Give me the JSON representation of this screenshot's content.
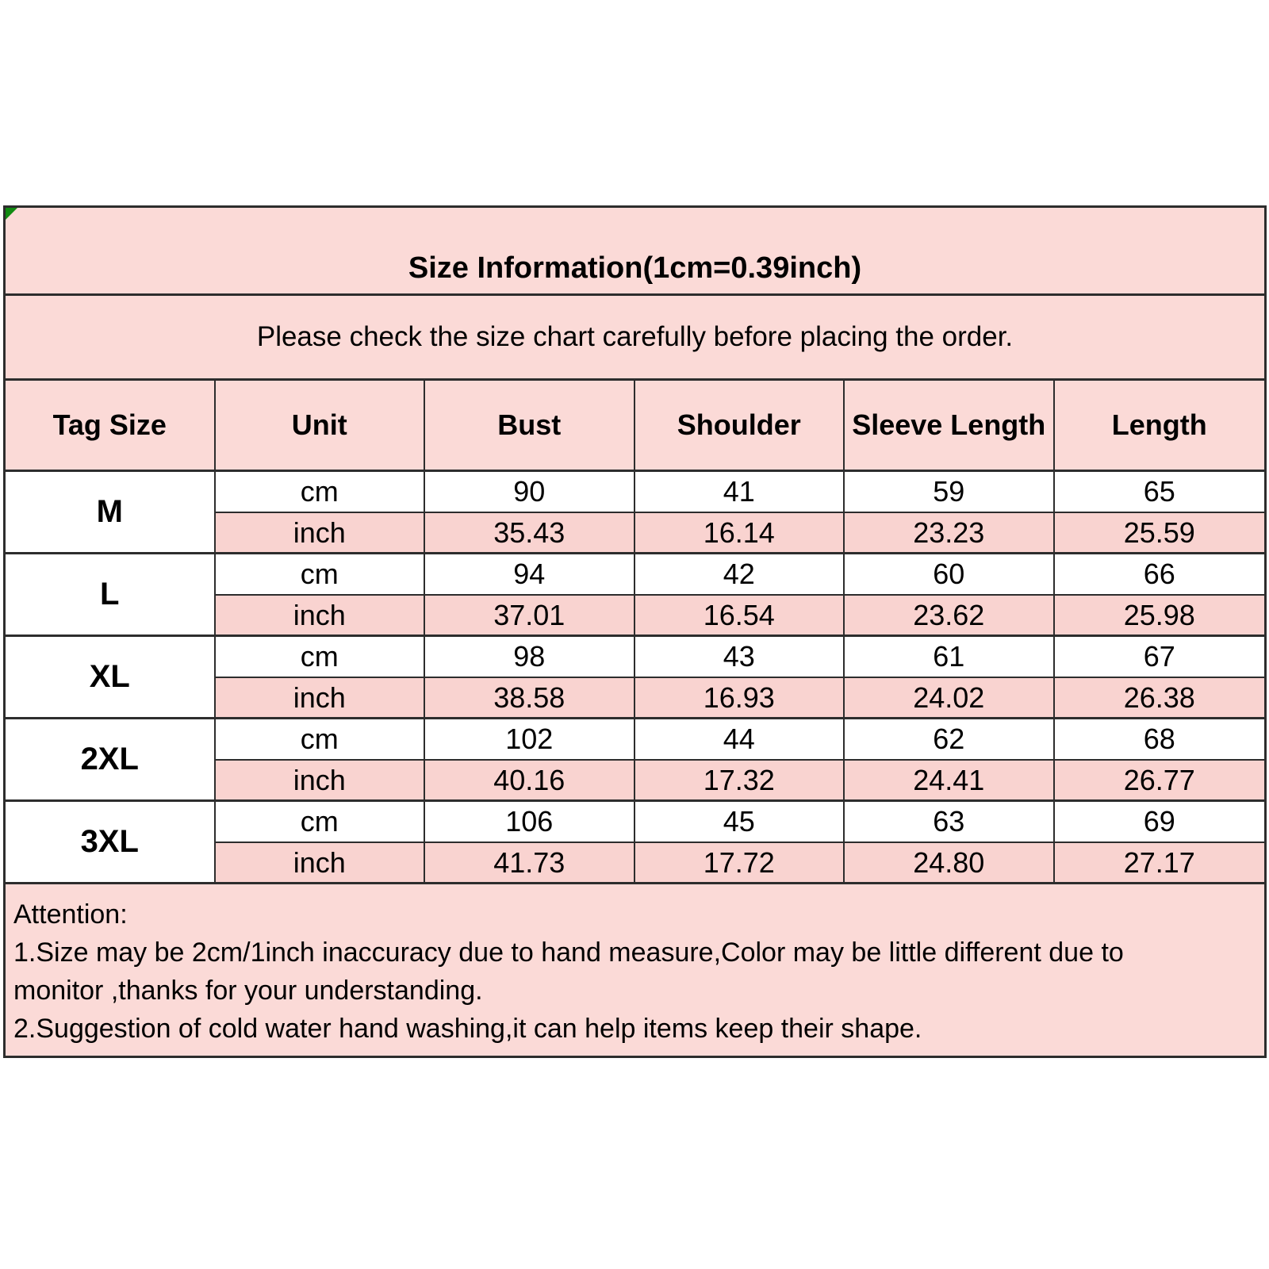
{
  "chart_data": {
    "type": "table",
    "title": "Size Information(1cm=0.39inch)",
    "subtitle": "Please check the size chart carefully before placing the order.",
    "columns": [
      "Tag Size",
      "Unit",
      "Bust",
      "Shoulder",
      "Sleeve Length",
      "Length"
    ],
    "unit_rows": [
      "cm",
      "inch"
    ],
    "rows": [
      {
        "tag": "M",
        "cm": [
          "90",
          "41",
          "59",
          "65"
        ],
        "inch": [
          "35.43",
          "16.14",
          "23.23",
          "25.59"
        ]
      },
      {
        "tag": "L",
        "cm": [
          "94",
          "42",
          "60",
          "66"
        ],
        "inch": [
          "37.01",
          "16.54",
          "23.62",
          "25.98"
        ]
      },
      {
        "tag": "XL",
        "cm": [
          "98",
          "43",
          "61",
          "67"
        ],
        "inch": [
          "38.58",
          "16.93",
          "24.02",
          "26.38"
        ]
      },
      {
        "tag": "2XL",
        "cm": [
          "102",
          "44",
          "62",
          "68"
        ],
        "inch": [
          "40.16",
          "17.32",
          "24.41",
          "26.77"
        ]
      },
      {
        "tag": "3XL",
        "cm": [
          "106",
          "45",
          "63",
          "69"
        ],
        "inch": [
          "41.73",
          "17.72",
          "24.80",
          "27.17"
        ]
      }
    ],
    "notes": {
      "heading": "Attention:",
      "note1": "1.Size may be 2cm/1inch inaccuracy due to hand measure,Color may be little different due to monitor ,thanks for your understanding.",
      "note2": "2.Suggestion of cold water hand washing,it can help items keep their shape."
    },
    "layout_hints": {
      "grid": "on",
      "cm_rows_background": "white",
      "inch_rows_background": "pink",
      "tag_column_background": "white"
    }
  },
  "colors": {
    "page_background": "#ffffff",
    "pink": "#fbdad7",
    "inch_row_pink": "#f9d3d0",
    "border": "#2d2d2d",
    "corner_marker_green": "#128a12",
    "text": "#000000"
  }
}
